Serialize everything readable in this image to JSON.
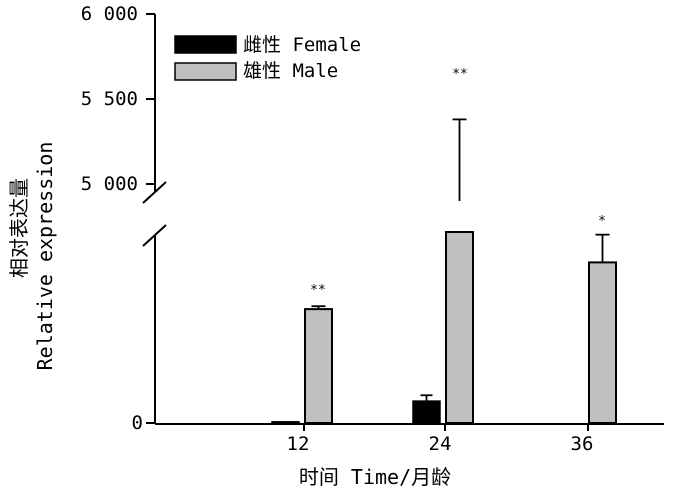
{
  "chart_data": {
    "type": "bar",
    "xlabel": "时间 Time/月龄",
    "ylabel_cn": "相对表达量",
    "ylabel_en": "Relative expression",
    "categories": [
      "12",
      "24",
      "36"
    ],
    "y_break": true,
    "y_lower_ticks": [
      "0"
    ],
    "y_upper_ticks": [
      "5 000",
      "5 500",
      "6 000"
    ],
    "y_upper_range": [
      5000,
      6000
    ],
    "legend_position": "top-left",
    "series": [
      {
        "name": "雌性 Female",
        "color": "#000000",
        "values": [
          8,
          150,
          null
        ],
        "errors": [
          null,
          40,
          null
        ],
        "significance": [
          "",
          "",
          ""
        ]
      },
      {
        "name": "雄性 Male",
        "color": "#c0c0c0",
        "values": [
          780,
          4900,
          1100
        ],
        "errors": [
          20,
          480,
          190
        ],
        "significance": [
          "**",
          "**",
          "*"
        ]
      }
    ]
  }
}
